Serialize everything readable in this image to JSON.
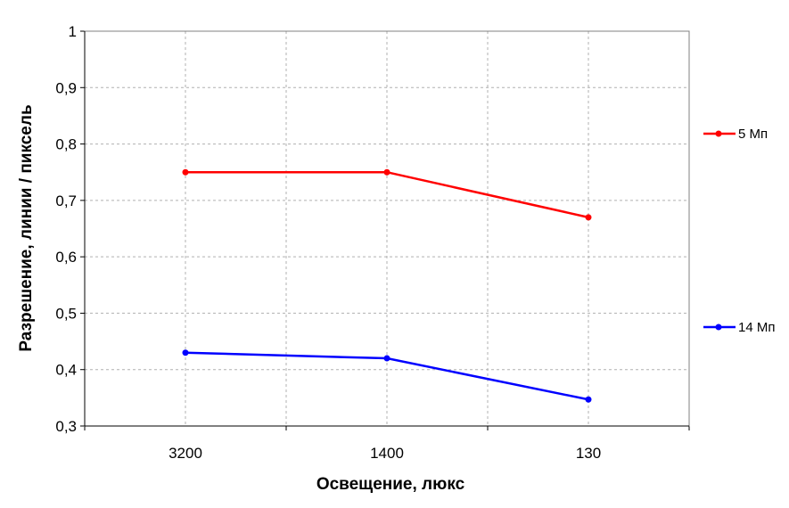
{
  "chart_data": {
    "type": "line",
    "title": "",
    "xlabel": "Освещение, люкс",
    "ylabel": "Разрешение, линии / пиксель",
    "categories": [
      "3200",
      "1400",
      "130"
    ],
    "ylim": [
      0.3,
      1
    ],
    "yticks": [
      0.3,
      0.4,
      0.5,
      0.6,
      0.7,
      0.8,
      0.9,
      1
    ],
    "ytick_labels": [
      "0,3",
      "0,4",
      "0,5",
      "0,6",
      "0,7",
      "0,8",
      "0,9",
      "1"
    ],
    "grid": true,
    "legend": "right",
    "series": [
      {
        "name": "5 Мп",
        "color": "#ff0000",
        "values": [
          0.75,
          0.75,
          0.67
        ]
      },
      {
        "name": "14 Мп",
        "color": "#0000ff",
        "values": [
          0.43,
          0.42,
          0.347
        ]
      }
    ]
  }
}
